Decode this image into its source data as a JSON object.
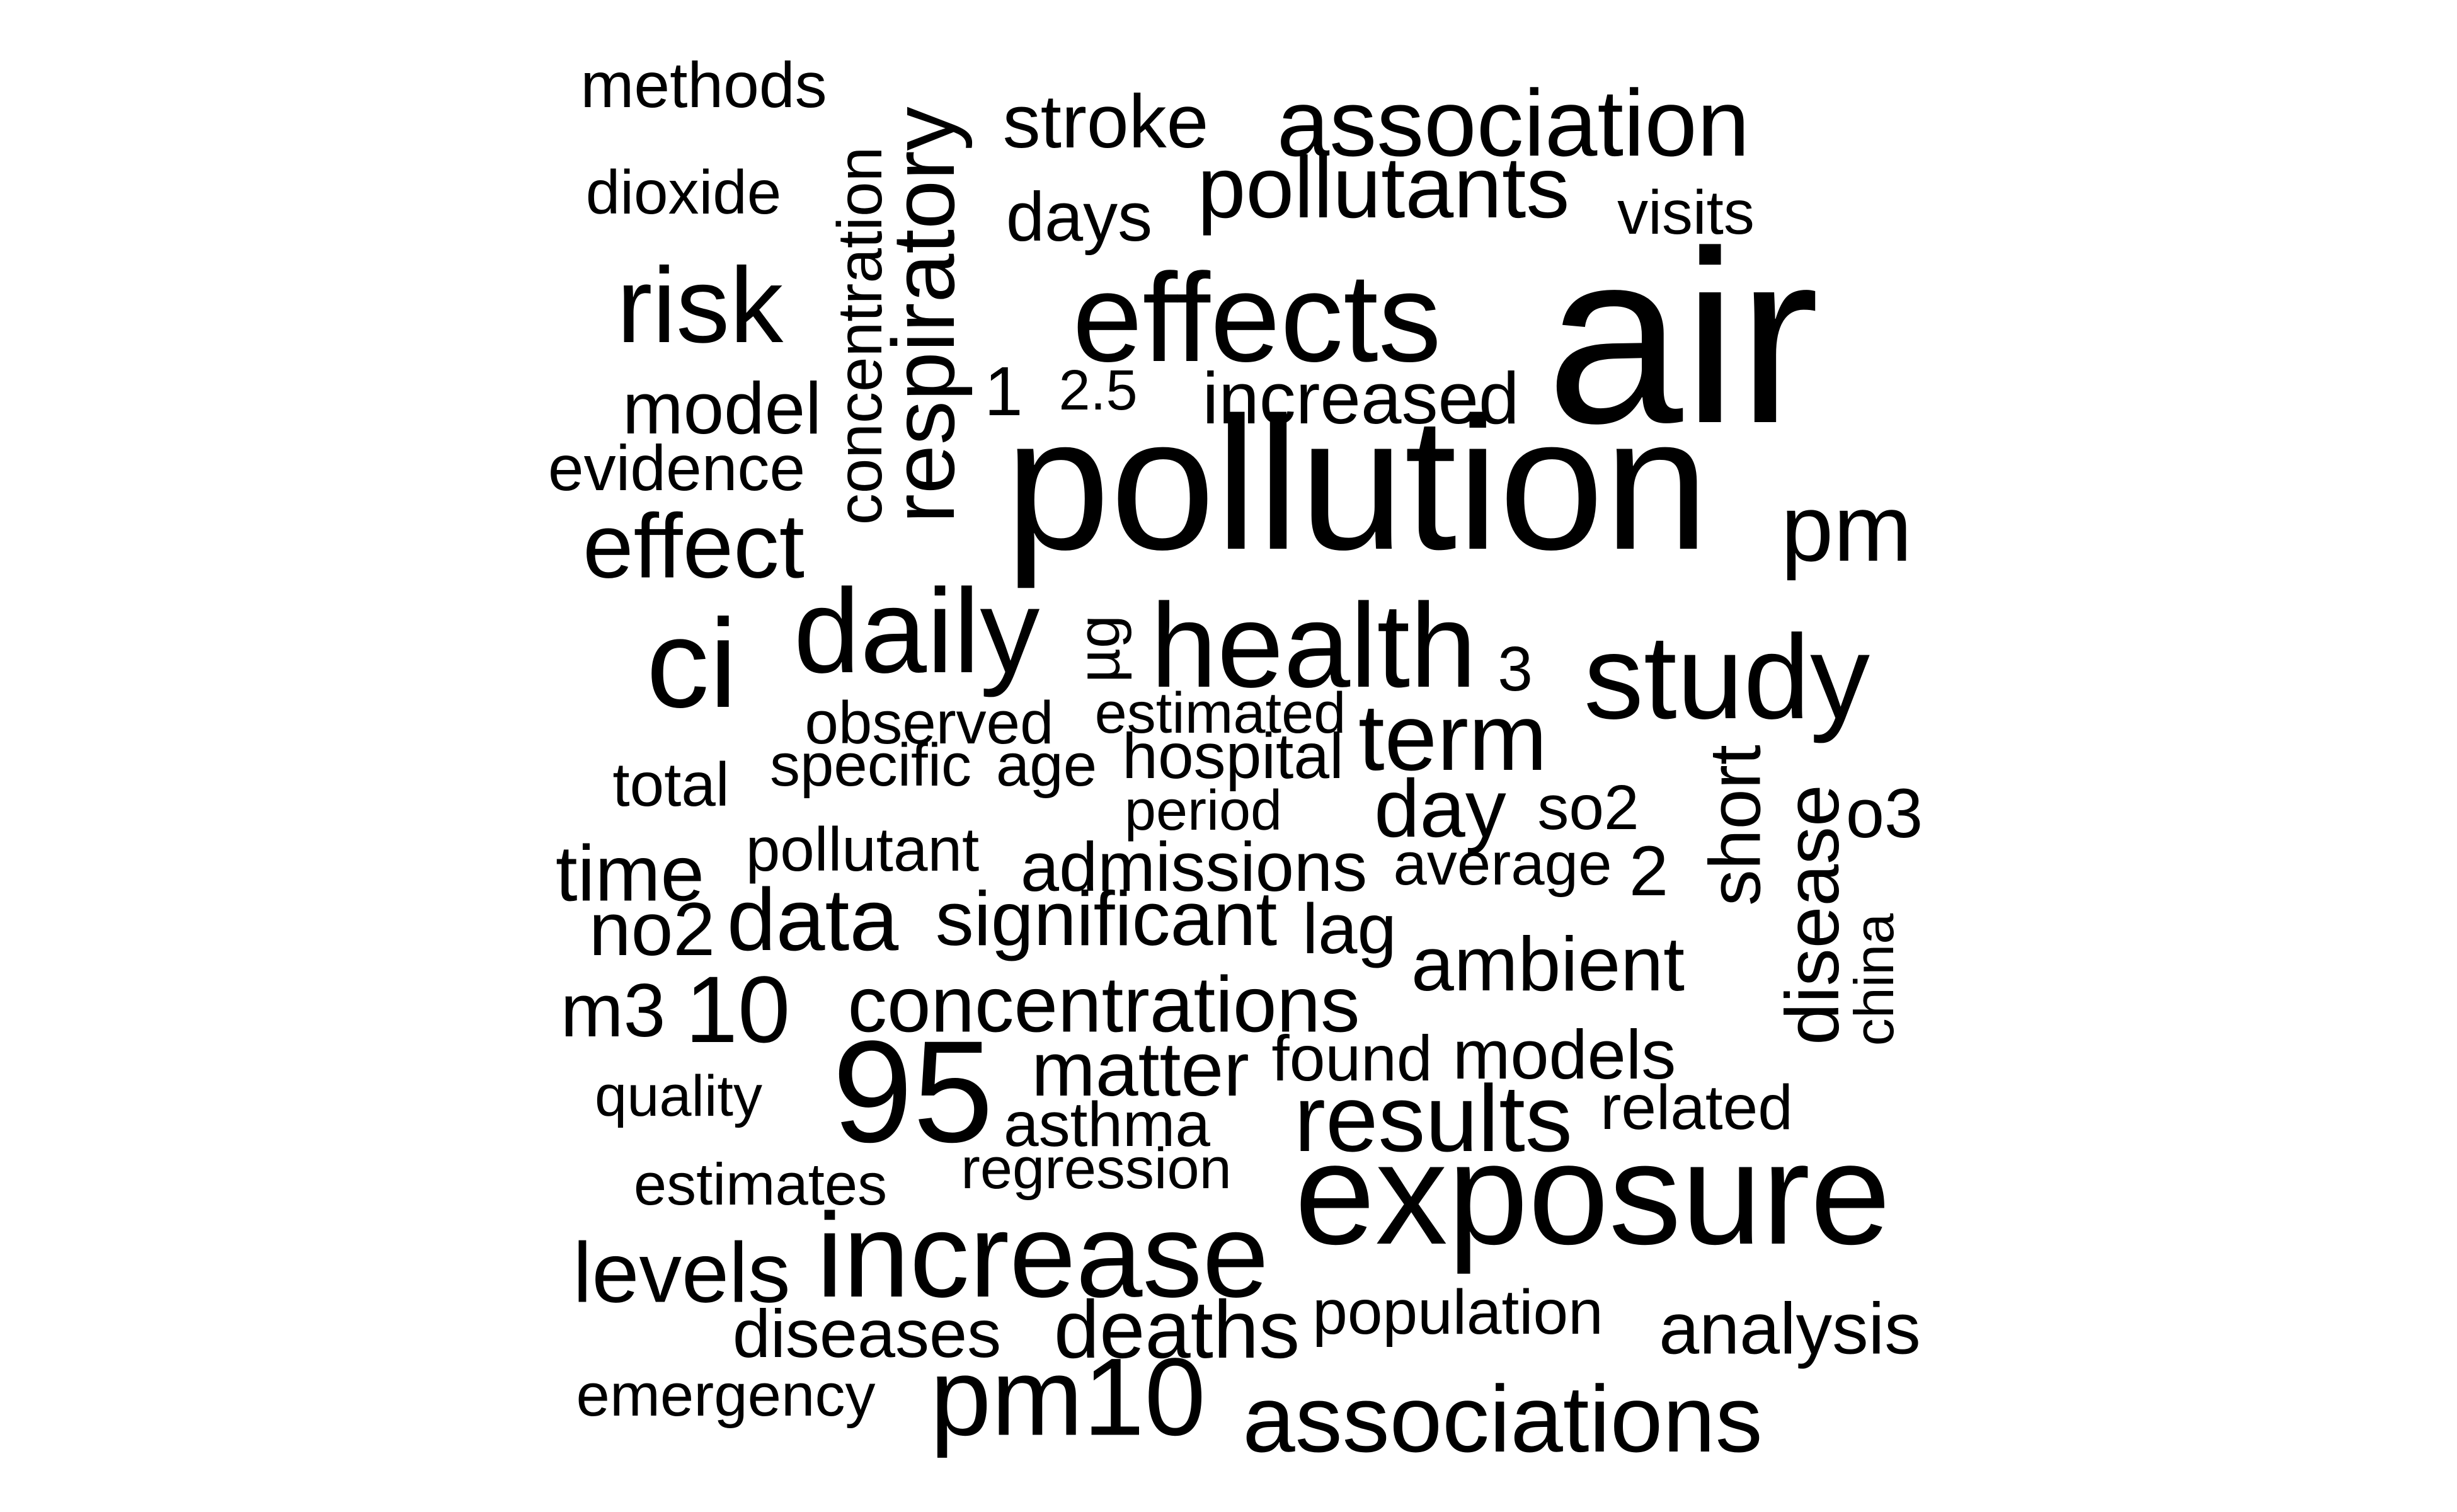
{
  "word_cloud": {
    "text_color": "#000000",
    "background_color": "#ffffff",
    "words": [
      "methods",
      "dioxide",
      "concentration",
      "respiratory",
      "stroke",
      "association",
      "days",
      "pollutants",
      "visits",
      "risk",
      "effects",
      "air",
      "1",
      "2.5",
      "increased",
      "model",
      "evidence",
      "pollution",
      "pm",
      "effect",
      "daily",
      "ci",
      "µg",
      "health",
      "3",
      "study",
      "observed",
      "estimated",
      "term",
      "specific",
      "age",
      "hospital",
      "total",
      "short",
      "period",
      "day",
      "so2",
      "disease",
      "o3",
      "pollutant",
      "time",
      "admissions",
      "average",
      "2",
      "data",
      "significant",
      "no2",
      "china",
      "lag",
      "ambient",
      "m3",
      "10",
      "concentrations",
      "found",
      "models",
      "95",
      "matter",
      "quality",
      "related",
      "asthma",
      "results",
      "regression",
      "estimates",
      "exposure",
      "increase",
      "levels",
      "population",
      "analysis",
      "diseases",
      "deaths",
      "emergency",
      "pm10",
      "associations"
    ]
  }
}
